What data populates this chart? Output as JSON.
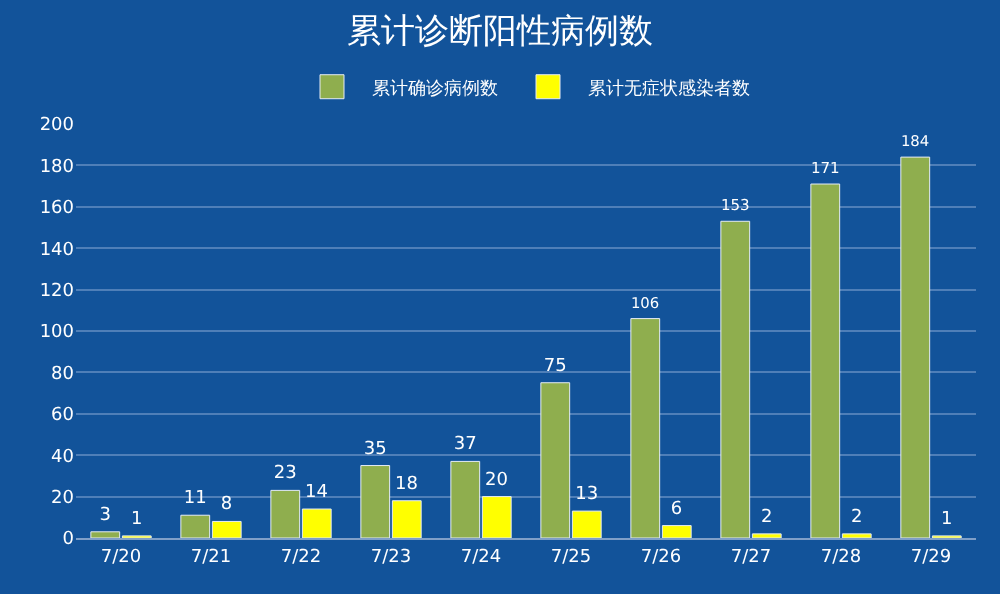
{
  "chart_data": {
    "type": "bar",
    "title": "累计诊断阳性病例数",
    "categories": [
      "7/20",
      "7/21",
      "7/22",
      "7/23",
      "7/24",
      "7/25",
      "7/26",
      "7/27",
      "7/28",
      "7/29"
    ],
    "series": [
      {
        "name": "累计确诊病例数",
        "color": "#8fae4e",
        "values": [
          3,
          11,
          23,
          35,
          37,
          75,
          106,
          153,
          171,
          184
        ]
      },
      {
        "name": "累计无症状感染者数",
        "color": "#ffff00",
        "values": [
          1,
          8,
          14,
          18,
          20,
          13,
          6,
          2,
          2,
          1
        ]
      }
    ],
    "ylim": [
      0,
      200
    ],
    "yticks": [
      0,
      20,
      40,
      60,
      80,
      100,
      120,
      140,
      160,
      180,
      200
    ],
    "grid": "y",
    "legend": "top",
    "data_labels": true
  }
}
